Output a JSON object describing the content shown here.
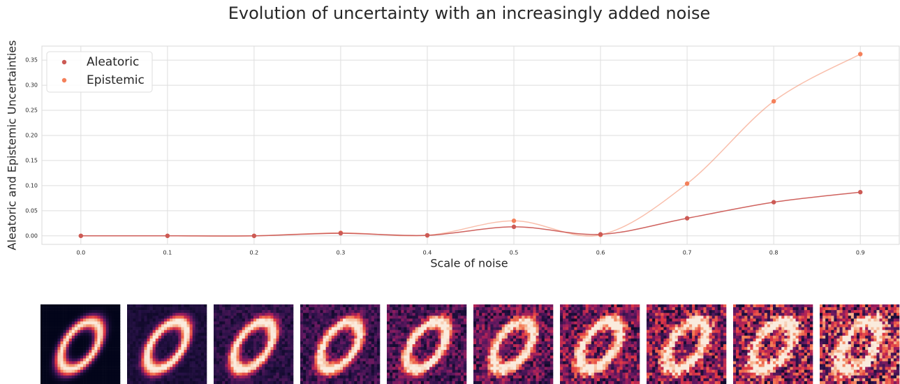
{
  "chart_data": {
    "type": "line",
    "title": "Evolution of uncertainty with an increasingly added noise",
    "x_label": "Scale of noise",
    "y_label": "Aleatoric and Epistemic Uncertainties",
    "x": [
      0.0,
      0.1,
      0.2,
      0.3,
      0.4,
      0.5,
      0.6,
      0.7,
      0.8,
      0.9
    ],
    "series": [
      {
        "name": "Aleatoric",
        "color": "#cc5a55",
        "values": [
          0.0,
          0.0,
          0.0,
          0.005,
          0.001,
          0.018,
          0.003,
          0.035,
          0.067,
          0.087
        ]
      },
      {
        "name": "Epistemic",
        "color": "#f4805a",
        "values": [
          0.0,
          0.0,
          0.0,
          0.006,
          0.001,
          0.03,
          0.002,
          0.104,
          0.268,
          0.362
        ]
      }
    ],
    "xlim": [
      -0.045,
      0.945
    ],
    "ylim": [
      -0.017,
      0.378
    ],
    "xticks": [
      {
        "value": 0,
        "label": "0.0"
      },
      0.1,
      0.2,
      0.3,
      0.4,
      0.5,
      0.6,
      0.7,
      0.8,
      0.9
    ],
    "yticks": [
      {
        "value": 0,
        "label": "0.00"
      },
      0.05,
      {
        "value": 0.1,
        "label": "0.10"
      },
      0.15,
      {
        "value": 0.2,
        "label": "0.20"
      },
      0.25,
      {
        "value": 0.3,
        "label": "0.30"
      },
      0.35
    ],
    "grid": true,
    "legend": "upper-left"
  }
}
